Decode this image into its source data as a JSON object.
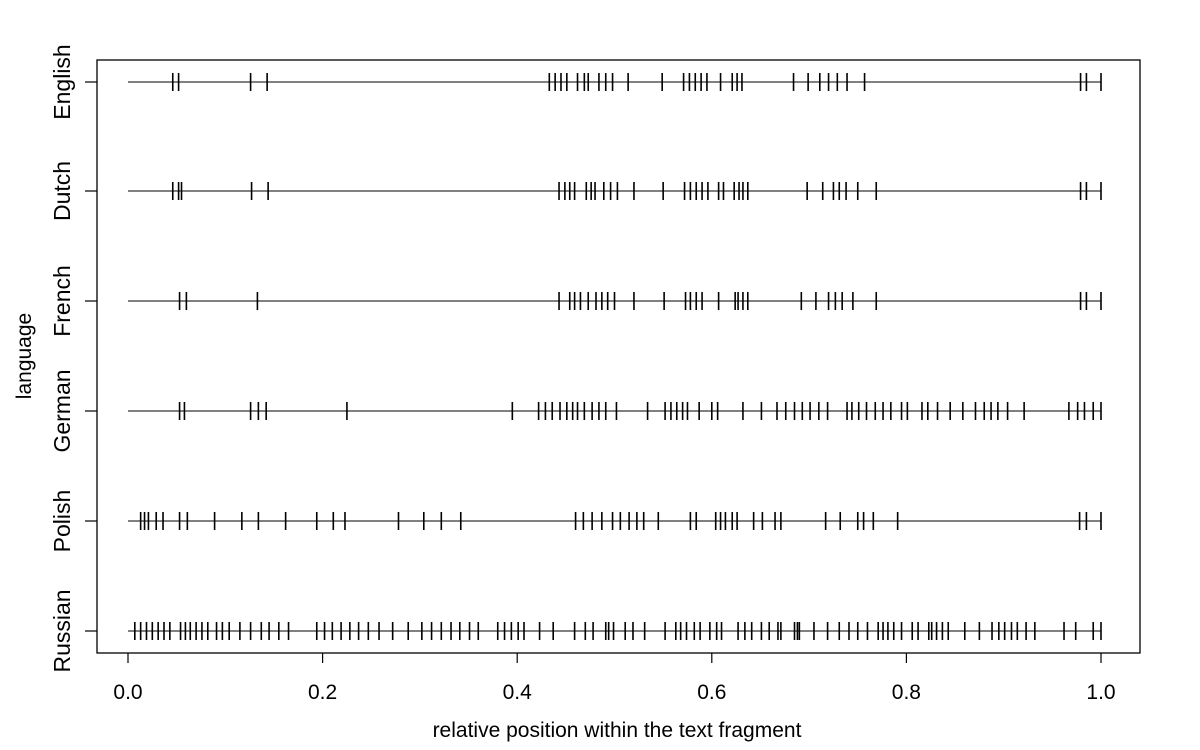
{
  "chart_data": {
    "type": "scatter",
    "subtype": "strip-plot",
    "xlabel": "relative position within the text fragment",
    "ylabel": "language",
    "xlim": [
      0,
      1
    ],
    "x_ticks": [
      "0.0",
      "0.2",
      "0.4",
      "0.6",
      "0.8",
      "1.0"
    ],
    "x_tick_values": [
      0,
      0.2,
      0.4,
      0.6,
      0.8,
      1.0
    ],
    "grid": false,
    "legend": "none",
    "mark_color": "#000000",
    "categories": [
      "English",
      "Dutch",
      "French",
      "German",
      "Polish",
      "Russian"
    ],
    "series": [
      {
        "name": "English",
        "x": [
          0.046,
          0.052,
          0.126,
          0.143,
          0.433,
          0.439,
          0.445,
          0.451,
          0.462,
          0.469,
          0.473,
          0.484,
          0.491,
          0.498,
          0.514,
          0.549,
          0.571,
          0.577,
          0.583,
          0.589,
          0.595,
          0.609,
          0.621,
          0.626,
          0.631,
          0.684,
          0.699,
          0.711,
          0.72,
          0.729,
          0.739,
          0.757,
          0.979,
          0.985,
          1.0
        ]
      },
      {
        "name": "Dutch",
        "x": [
          0.046,
          0.052,
          0.055,
          0.127,
          0.144,
          0.443,
          0.449,
          0.454,
          0.459,
          0.471,
          0.476,
          0.48,
          0.489,
          0.496,
          0.503,
          0.52,
          0.55,
          0.572,
          0.578,
          0.584,
          0.59,
          0.596,
          0.607,
          0.612,
          0.623,
          0.628,
          0.632,
          0.637,
          0.698,
          0.714,
          0.725,
          0.731,
          0.738,
          0.75,
          0.769,
          0.979,
          0.985,
          1.0
        ]
      },
      {
        "name": "French",
        "x": [
          0.053,
          0.06,
          0.133,
          0.443,
          0.454,
          0.459,
          0.465,
          0.473,
          0.481,
          0.487,
          0.493,
          0.5,
          0.52,
          0.551,
          0.573,
          0.578,
          0.584,
          0.59,
          0.607,
          0.624,
          0.627,
          0.632,
          0.637,
          0.692,
          0.707,
          0.72,
          0.727,
          0.734,
          0.745,
          0.769,
          0.979,
          0.985,
          1.0
        ]
      },
      {
        "name": "German",
        "x": [
          0.053,
          0.058,
          0.126,
          0.134,
          0.142,
          0.225,
          0.395,
          0.422,
          0.429,
          0.436,
          0.444,
          0.451,
          0.457,
          0.462,
          0.469,
          0.477,
          0.484,
          0.491,
          0.502,
          0.534,
          0.552,
          0.558,
          0.564,
          0.57,
          0.575,
          0.587,
          0.6,
          0.606,
          0.632,
          0.651,
          0.667,
          0.676,
          0.685,
          0.693,
          0.701,
          0.71,
          0.719,
          0.739,
          0.744,
          0.751,
          0.759,
          0.768,
          0.776,
          0.784,
          0.795,
          0.801,
          0.816,
          0.822,
          0.832,
          0.845,
          0.858,
          0.871,
          0.88,
          0.887,
          0.894,
          0.904,
          0.921,
          0.967,
          0.976,
          0.983,
          0.992,
          1.0
        ]
      },
      {
        "name": "Polish",
        "x": [
          0.013,
          0.017,
          0.021,
          0.029,
          0.036,
          0.053,
          0.061,
          0.089,
          0.117,
          0.134,
          0.162,
          0.194,
          0.211,
          0.223,
          0.278,
          0.304,
          0.322,
          0.342,
          0.46,
          0.468,
          0.477,
          0.487,
          0.498,
          0.506,
          0.515,
          0.523,
          0.53,
          0.545,
          0.578,
          0.584,
          0.604,
          0.609,
          0.614,
          0.621,
          0.626,
          0.643,
          0.652,
          0.665,
          0.671,
          0.717,
          0.732,
          0.75,
          0.756,
          0.766,
          0.791,
          0.978,
          0.985,
          1.0
        ]
      },
      {
        "name": "Russian",
        "x": [
          0.007,
          0.013,
          0.019,
          0.025,
          0.031,
          0.037,
          0.043,
          0.054,
          0.059,
          0.064,
          0.07,
          0.076,
          0.082,
          0.091,
          0.097,
          0.104,
          0.115,
          0.126,
          0.137,
          0.145,
          0.155,
          0.165,
          0.194,
          0.202,
          0.21,
          0.219,
          0.228,
          0.237,
          0.247,
          0.258,
          0.272,
          0.288,
          0.302,
          0.312,
          0.322,
          0.332,
          0.341,
          0.351,
          0.36,
          0.38,
          0.387,
          0.394,
          0.401,
          0.407,
          0.423,
          0.437,
          0.459,
          0.47,
          0.478,
          0.491,
          0.494,
          0.499,
          0.511,
          0.519,
          0.531,
          0.552,
          0.563,
          0.568,
          0.574,
          0.582,
          0.588,
          0.598,
          0.605,
          0.61,
          0.627,
          0.634,
          0.641,
          0.651,
          0.659,
          0.668,
          0.671,
          0.685,
          0.688,
          0.69,
          0.705,
          0.719,
          0.731,
          0.741,
          0.75,
          0.76,
          0.771,
          0.776,
          0.781,
          0.787,
          0.795,
          0.806,
          0.812,
          0.823,
          0.826,
          0.831,
          0.837,
          0.843,
          0.86,
          0.875,
          0.888,
          0.895,
          0.901,
          0.908,
          0.914,
          0.923,
          0.932,
          0.962,
          0.974,
          0.992,
          1.0
        ]
      }
    ]
  }
}
